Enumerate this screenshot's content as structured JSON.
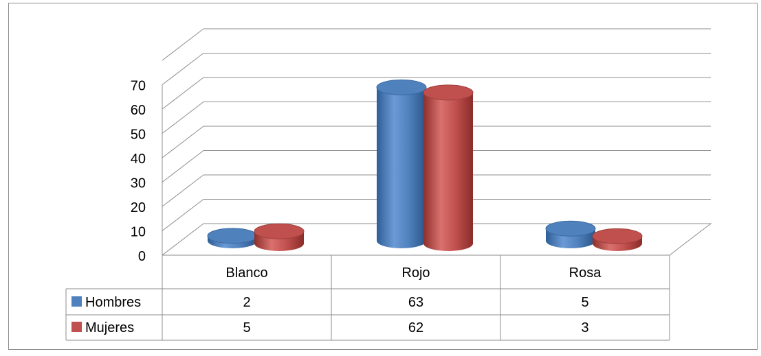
{
  "chart_data": {
    "type": "bar",
    "categories": [
      "Blanco",
      "Rojo",
      "Rosa"
    ],
    "series": [
      {
        "name": "Hombres",
        "values": [
          2,
          63,
          5
        ],
        "color": "#4f81bd"
      },
      {
        "name": "Mujeres",
        "values": [
          5,
          62,
          3
        ],
        "color": "#c0504d"
      }
    ],
    "y_ticks": [
      "0",
      "10",
      "20",
      "30",
      "40",
      "50",
      "60",
      "70"
    ],
    "ylim": [
      0,
      80
    ],
    "grid": true,
    "legend": "data-table",
    "title": "",
    "xlabel": "",
    "ylabel": ""
  }
}
